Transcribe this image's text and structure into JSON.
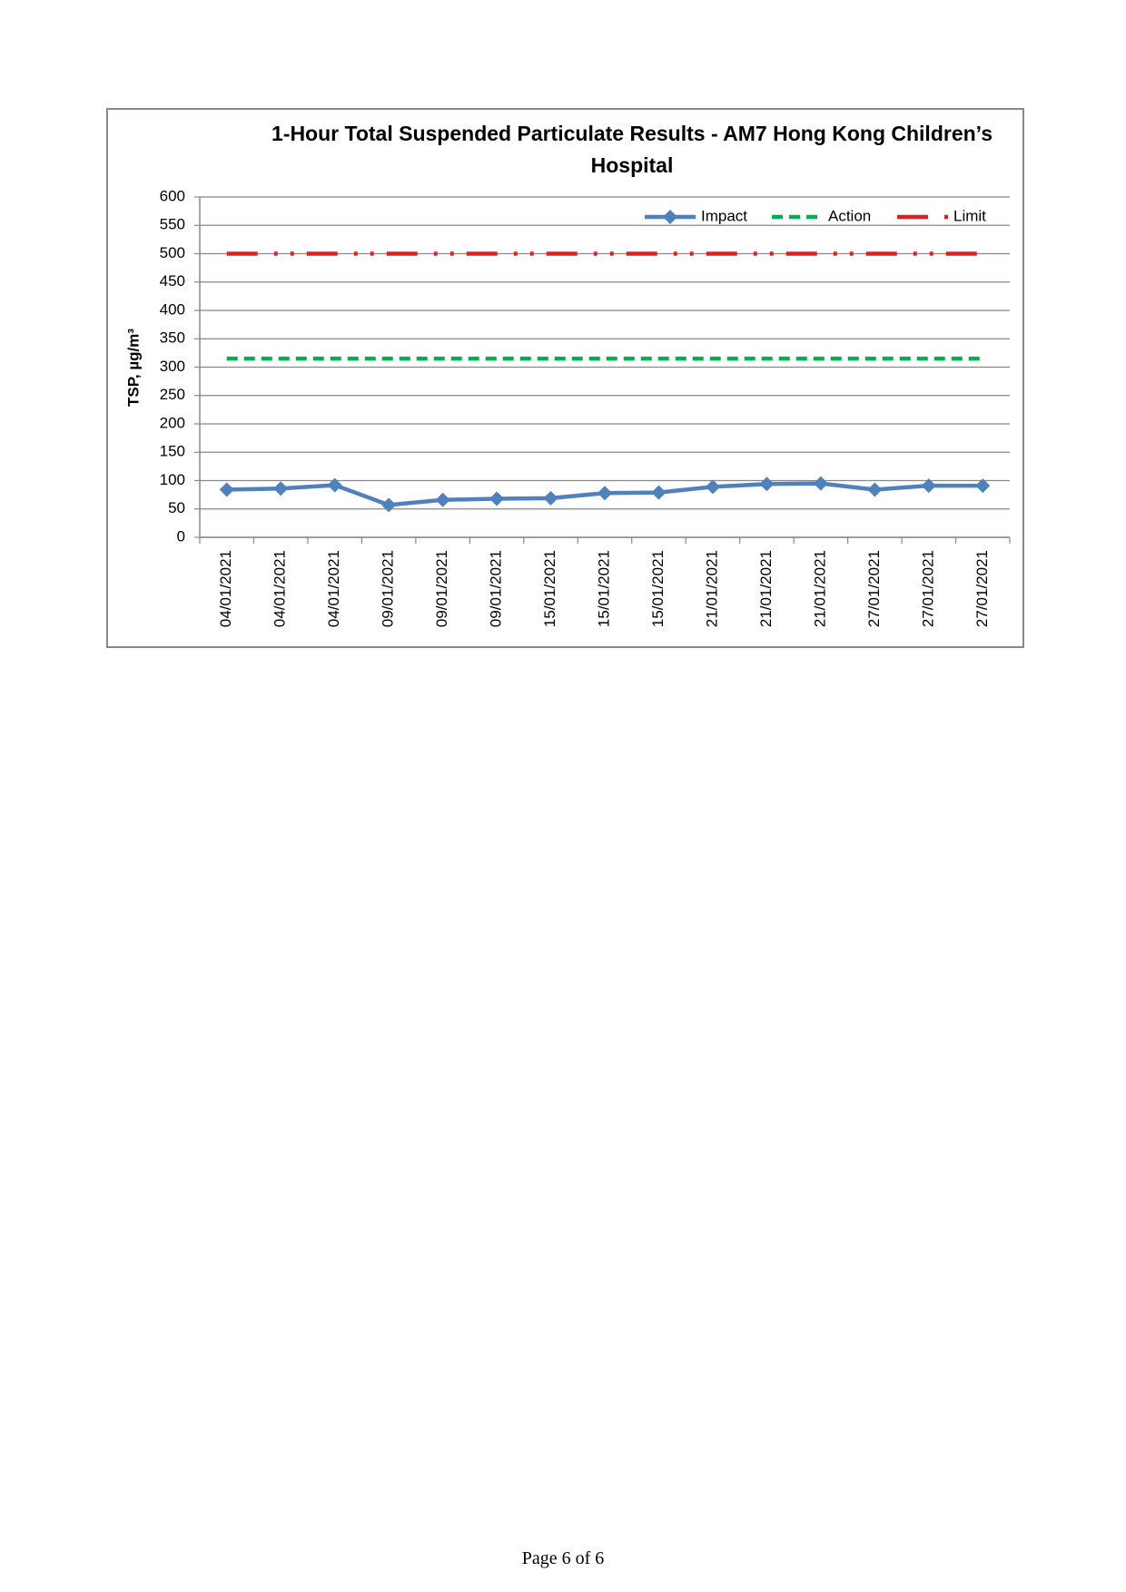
{
  "chart_data": {
    "type": "line",
    "title": "1-Hour Total Suspended Particulate Results - AM7 Hong Kong Children’s Hospital",
    "y_label": "TSP, µg/m³",
    "categories": [
      "04/01/2021",
      "04/01/2021",
      "04/01/2021",
      "09/01/2021",
      "09/01/2021",
      "09/01/2021",
      "15/01/2021",
      "15/01/2021",
      "15/01/2021",
      "21/01/2021",
      "21/01/2021",
      "21/01/2021",
      "27/01/2021",
      "27/01/2021",
      "27/01/2021"
    ],
    "series": [
      {
        "name": "Impact",
        "color": "#4f81bd",
        "values": [
          84,
          86,
          92,
          57,
          66,
          68,
          69,
          78,
          79,
          89,
          94,
          95,
          84,
          91,
          91
        ]
      },
      {
        "name": "Action",
        "color": "#00b050",
        "values": [
          315,
          315,
          315,
          315,
          315,
          315,
          315,
          315,
          315,
          315,
          315,
          315,
          315,
          315,
          315
        ]
      },
      {
        "name": "Limit",
        "color": "#e02020",
        "values": [
          500,
          500,
          500,
          500,
          500,
          500,
          500,
          500,
          500,
          500,
          500,
          500,
          500,
          500,
          500
        ]
      }
    ],
    "ylim": [
      0,
      600
    ],
    "yticks": [
      0,
      50,
      100,
      150,
      200,
      250,
      300,
      350,
      400,
      450,
      500,
      550,
      600
    ],
    "grid": true,
    "legend": "top-right"
  },
  "footer": "Page 6 of 6"
}
